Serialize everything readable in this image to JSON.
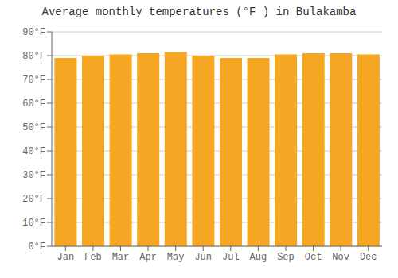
{
  "chart_data": {
    "type": "bar",
    "title": "Average monthly temperatures (°F ) in Bulakamba",
    "categories": [
      "Jan",
      "Feb",
      "Mar",
      "Apr",
      "May",
      "Jun",
      "Jul",
      "Aug",
      "Sep",
      "Oct",
      "Nov",
      "Dec"
    ],
    "values": [
      79,
      80,
      80.5,
      81,
      81.5,
      80,
      79,
      79,
      80.5,
      81,
      81,
      80.5
    ],
    "color": "#F5A623",
    "ylim": [
      0,
      90
    ],
    "yticks": [
      {
        "value": 0,
        "label": "0°F"
      },
      {
        "value": 10,
        "label": "10°F"
      },
      {
        "value": 20,
        "label": "20°F"
      },
      {
        "value": 30,
        "label": "30°F"
      },
      {
        "value": 40,
        "label": "40°F"
      },
      {
        "value": 50,
        "label": "50°F"
      },
      {
        "value": 60,
        "label": "60°F"
      },
      {
        "value": 70,
        "label": "70°F"
      },
      {
        "value": 80,
        "label": "80°F"
      },
      {
        "value": 90,
        "label": "90°F"
      }
    ],
    "grid": true
  }
}
